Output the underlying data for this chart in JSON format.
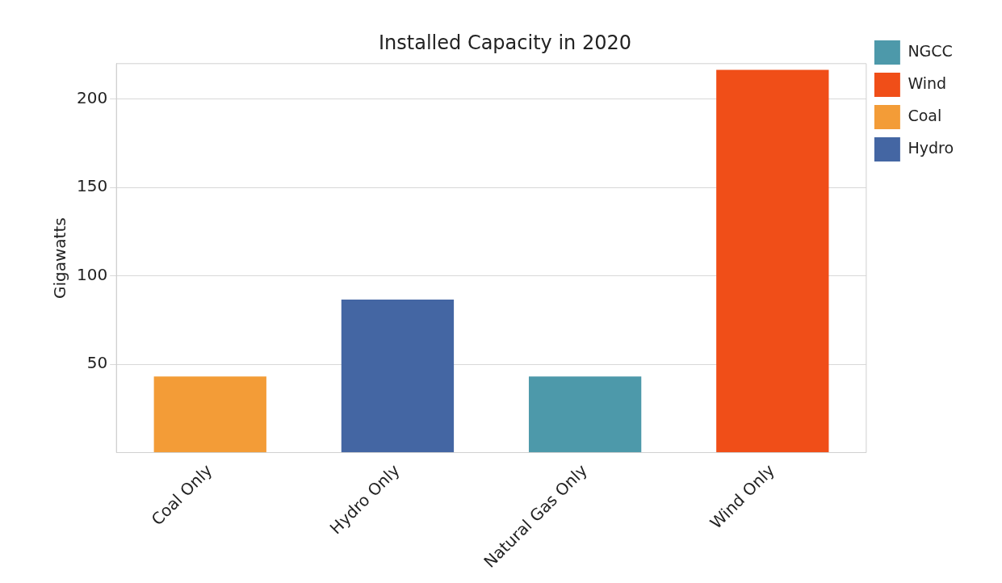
{
  "chart_data": {
    "type": "bar",
    "title": "Installed Capacity in 2020",
    "ylabel": "Gigawatts",
    "categories": [
      "Coal Only",
      "Hydro Only",
      "Natural Gas Only",
      "Wind Only"
    ],
    "series": [
      {
        "name": "NGCC",
        "color": "#4d99aa",
        "values": [
          null,
          null,
          43,
          null
        ]
      },
      {
        "name": "Wind",
        "color": "#f04e18",
        "values": [
          null,
          null,
          null,
          216.5
        ]
      },
      {
        "name": "Coal",
        "color": "#f39c37",
        "values": [
          43,
          null,
          null,
          null
        ]
      },
      {
        "name": "Hydro",
        "color": "#4466a3",
        "values": [
          null,
          86.5,
          null,
          null
        ]
      }
    ],
    "ylim": [
      0,
      220
    ],
    "yticks": [
      50,
      100,
      150,
      200
    ],
    "grid": "y",
    "legend": "top right"
  }
}
